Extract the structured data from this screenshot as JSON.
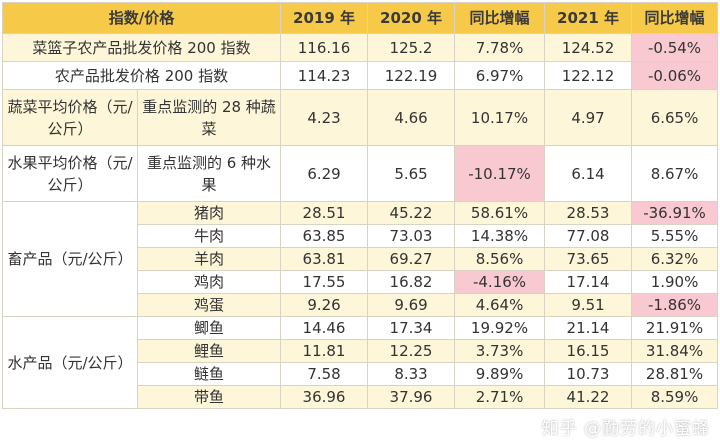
{
  "header": [
    "指数/价格",
    "2019 年",
    "2020 年",
    "同比增幅",
    "2021 年",
    "同比增幅"
  ],
  "rows": [
    {
      "name": "菜篮子农产品批发价格 200 指数",
      "v2019": "116.16",
      "v2020": "125.2",
      "g2020": "7.78%",
      "v2021": "124.52",
      "g2021": "-0.54%"
    },
    {
      "name": "农产品批发价格 200 指数",
      "v2019": "114.23",
      "v2020": "122.19",
      "g2020": "6.97%",
      "v2021": "122.12",
      "g2021": "-0.06%"
    },
    {
      "category": "蔬菜平均价格（元/公斤）",
      "item": "重点监测的 28 种蔬菜",
      "v2019": "4.23",
      "v2020": "4.66",
      "g2020": "10.17%",
      "v2021": "4.97",
      "g2021": "6.65%"
    },
    {
      "category": "水果平均价格（元/公斤）",
      "item": "重点监测的 6 种水果",
      "v2019": "6.29",
      "v2020": "5.65",
      "g2020": "-10.17%",
      "v2021": "6.14",
      "g2021": "8.67%"
    },
    {
      "item": "猪肉",
      "v2019": "28.51",
      "v2020": "45.22",
      "g2020": "58.61%",
      "v2021": "28.53",
      "g2021": "-36.91%"
    },
    {
      "item": "牛肉",
      "v2019": "63.85",
      "v2020": "73.03",
      "g2020": "14.38%",
      "v2021": "77.08",
      "g2021": "5.55%"
    },
    {
      "item": "羊肉",
      "v2019": "63.81",
      "v2020": "69.27",
      "g2020": "8.56%",
      "v2021": "73.65",
      "g2021": "6.32%"
    },
    {
      "item": "鸡肉",
      "v2019": "17.55",
      "v2020": "16.82",
      "g2020": "-4.16%",
      "v2021": "17.14",
      "g2021": "1.90%"
    },
    {
      "item": "鸡蛋",
      "v2019": "9.26",
      "v2020": "9.69",
      "g2020": "4.64%",
      "v2021": "9.51",
      "g2021": "-1.86%"
    },
    {
      "item": "鲫鱼",
      "v2019": "14.46",
      "v2020": "17.34",
      "g2020": "19.92%",
      "v2021": "21.14",
      "g2021": "21.91%"
    },
    {
      "item": "鲤鱼",
      "v2019": "11.81",
      "v2020": "12.25",
      "g2020": "3.73%",
      "v2021": "16.15",
      "g2021": "31.84%"
    },
    {
      "item": "鲢鱼",
      "v2019": "7.58",
      "v2020": "8.33",
      "g2020": "9.89%",
      "v2021": "10.73",
      "g2021": "28.81%"
    },
    {
      "item": "带鱼",
      "v2019": "36.96",
      "v2020": "37.96",
      "g2020": "2.71%",
      "v2021": "41.22",
      "g2021": "8.59%"
    }
  ],
  "groups": {
    "livestock": "畜产品（元/公斤）",
    "aquatic": "水产品（元/公斤）"
  },
  "colors": {
    "header_bg": "#f7c948",
    "row_light": "#fdf6d8",
    "highlight": "#f9c9d2"
  },
  "watermark": "知乎 @勤劳的小蜜蜂"
}
